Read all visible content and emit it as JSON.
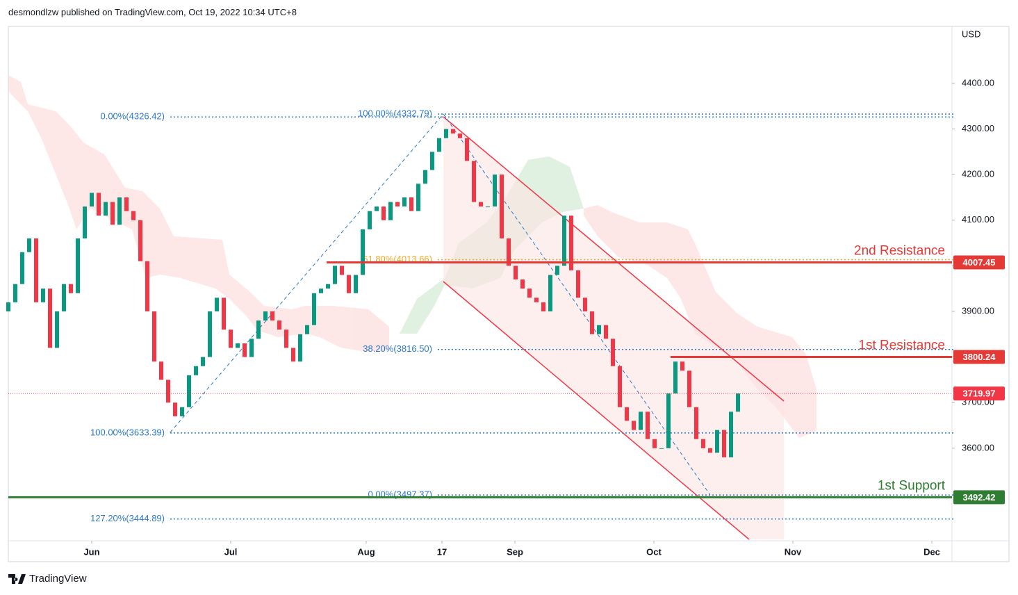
{
  "header": {
    "text": "desmondlzw published on TradingView.com, Oct 19, 2022 10:34 UTC+8"
  },
  "chart_data": {
    "type": "candlestick",
    "currency": "USD",
    "x": [
      -12,
      -11,
      -10,
      -9,
      -8,
      -7,
      -6,
      -5,
      -4,
      -3,
      -2,
      -1,
      0,
      1,
      2,
      3,
      4,
      5,
      6,
      7,
      8,
      9,
      10,
      11,
      12,
      13,
      14,
      15,
      16,
      17,
      18,
      19,
      20,
      21,
      22,
      23,
      24,
      25,
      26,
      27,
      28,
      29,
      30,
      31,
      32,
      33,
      34,
      35,
      36,
      37,
      38,
      39,
      40,
      41,
      42,
      43,
      44,
      45,
      46,
      47,
      48,
      49,
      50,
      51,
      52,
      53,
      54,
      55,
      56,
      57,
      58,
      59,
      60,
      61,
      62,
      63,
      64,
      65,
      66,
      67,
      68,
      69,
      70,
      71,
      72,
      73,
      74,
      75,
      76,
      77,
      78,
      79,
      80,
      81,
      82,
      83,
      84,
      85,
      86,
      87,
      88,
      89,
      90,
      91,
      92,
      93
    ],
    "open": [
      3900,
      3920,
      3960,
      4030,
      4060,
      3920,
      3950,
      3820,
      3900,
      3960,
      3940,
      4060,
      4130,
      4160,
      4110,
      4140,
      4090,
      4150,
      4120,
      4100,
      4010,
      3900,
      3790,
      3750,
      3700,
      3670,
      3690,
      3760,
      3780,
      3800,
      3900,
      3930,
      3860,
      3820,
      3830,
      3800,
      3840,
      3880,
      3900,
      3880,
      3860,
      3820,
      3790,
      3850,
      3870,
      3940,
      3950,
      3960,
      4000,
      3980,
      3940,
      3980,
      4080,
      4120,
      4130,
      4100,
      4140,
      4130,
      4150,
      4120,
      4180,
      4210,
      4250,
      4280,
      4300,
      4290,
      4280,
      4230,
      4140,
      4130,
      4130,
      4200,
      4060,
      4000,
      3970,
      3950,
      3930,
      3920,
      3900,
      3980,
      4000,
      4110,
      3990,
      3930,
      3900,
      3850,
      3870,
      3840,
      3780,
      3690,
      3660,
      3640,
      3680,
      3620,
      3600,
      3600,
      3720,
      3790,
      3770,
      3690,
      3620,
      3600,
      3590,
      3640,
      3580,
      3680
    ],
    "close": [
      3920,
      3960,
      4030,
      4060,
      3920,
      3950,
      3820,
      3900,
      3960,
      3940,
      4060,
      4130,
      4160,
      4110,
      4140,
      4090,
      4150,
      4120,
      4100,
      4010,
      3900,
      3790,
      3750,
      3700,
      3670,
      3690,
      3760,
      3780,
      3800,
      3900,
      3930,
      3860,
      3820,
      3830,
      3800,
      3840,
      3880,
      3900,
      3880,
      3860,
      3820,
      3790,
      3850,
      3870,
      3940,
      3950,
      3960,
      4000,
      3980,
      3940,
      3980,
      4080,
      4120,
      4130,
      4100,
      4140,
      4130,
      4150,
      4120,
      4180,
      4210,
      4250,
      4280,
      4300,
      4290,
      4280,
      4230,
      4140,
      4130,
      4130,
      4200,
      4060,
      4000,
      3970,
      3950,
      3930,
      3920,
      3900,
      3980,
      4000,
      4110,
      3990,
      3930,
      3900,
      3850,
      3870,
      3840,
      3780,
      3690,
      3660,
      3640,
      3680,
      3620,
      3600,
      3600,
      3720,
      3790,
      3770,
      3690,
      3620,
      3600,
      3590,
      3640,
      3580,
      3680,
      3720
    ],
    "up_color": "#089981",
    "down_color": "#f23645",
    "xlim": [
      -12,
      123.8
    ],
    "ylim": [
      3397,
      4525
    ],
    "xticks": [
      {
        "value": 0,
        "label": "Jun"
      },
      {
        "value": 20,
        "label": "Jul"
      },
      {
        "value": 39.5,
        "label": "Aug"
      },
      {
        "value": 50.4,
        "label": "17"
      },
      {
        "value": 60.9,
        "label": "Sep"
      },
      {
        "value": 80.9,
        "label": "Oct"
      },
      {
        "value": 100.9,
        "label": "Nov"
      },
      {
        "value": 120.9,
        "label": "Dec"
      }
    ],
    "yticks": [
      {
        "value": 4400,
        "label": "4400.00"
      },
      {
        "value": 4300,
        "label": "4300.00"
      },
      {
        "value": 4200,
        "label": "4200.00"
      },
      {
        "value": 4100,
        "label": "4100.00"
      },
      {
        "value": 4000,
        "label": "4000.00"
      },
      {
        "value": 3900,
        "label": "3900.00"
      },
      {
        "value": 3800,
        "label": "3800.00"
      },
      {
        "value": 3700,
        "label": "3700.00"
      },
      {
        "value": 3600,
        "label": "3600.00"
      }
    ],
    "fib_retracements": [
      {
        "levels": [
          {
            "label": "0.00%(4326.42)",
            "value": 4326.42,
            "color": "#2a78c9"
          },
          {
            "label": "100.00%(3633.39)",
            "value": 3633.39,
            "color": "#2a78c9"
          },
          {
            "label": "127.20%(3444.89)",
            "value": 3444.89,
            "color": "#2a78c9"
          }
        ]
      },
      {
        "levels": [
          {
            "label": "100.00%(4332.79)",
            "value": 4332.79,
            "color": "#2a78c9"
          },
          {
            "label": "61.80%(4013.66)",
            "value": 4013.66,
            "color": "#f5a623"
          },
          {
            "label": "38.20%(3816.50)",
            "value": 3816.5,
            "color": "#2a78c9"
          },
          {
            "label": "0.00%(3497.37)",
            "value": 3497.37,
            "color": "#2a78c9"
          }
        ]
      }
    ],
    "levels": [
      {
        "label": "2nd Resistance",
        "value": 4007.45,
        "color": "#e53935"
      },
      {
        "label": "1st Resistance",
        "value": 3800.24,
        "color": "#e53935"
      },
      {
        "label": "1st Support",
        "value": 3492.42,
        "color": "#2e7d32"
      }
    ],
    "last_price": {
      "value": 3719.97,
      "color": "#f23645"
    }
  },
  "footer": {
    "brand": "TradingView"
  }
}
